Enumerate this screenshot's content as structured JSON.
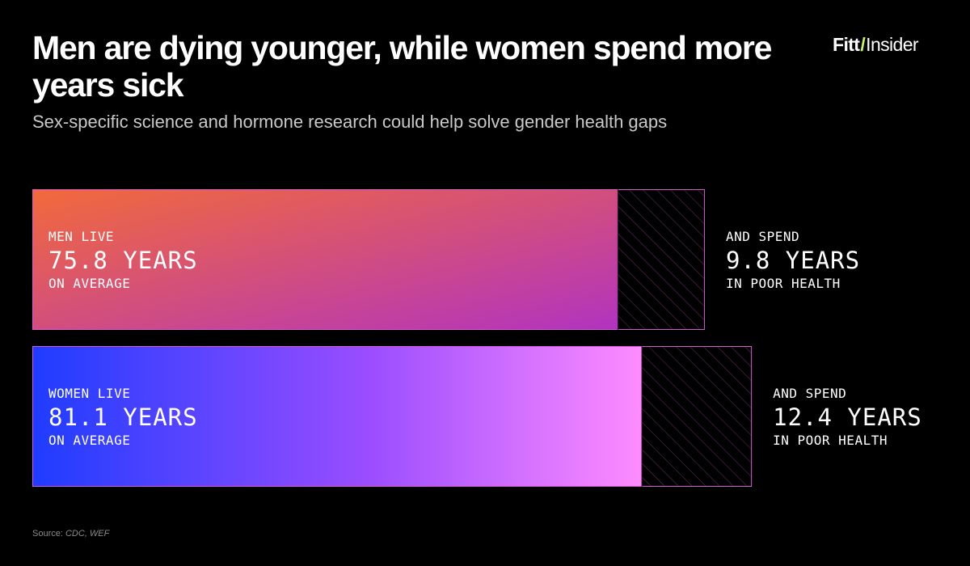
{
  "header": {
    "title": "Men are dying younger, while women spend more years sick",
    "subtitle": "Sex-specific science and hormone research could help solve gender health gaps"
  },
  "logo": {
    "brand": "Fitt",
    "slash": "/",
    "word": "Insider"
  },
  "chart_data": {
    "type": "bar",
    "orientation": "horizontal",
    "stacked": true,
    "categories": [
      "Men",
      "Women"
    ],
    "series": [
      {
        "values": [
          66.0,
          68.7
        ]
      },
      {
        "values": [
          9.8,
          12.4
        ]
      }
    ],
    "totals": [
      75.8,
      81.1
    ],
    "xlim": [
      0,
      82
    ],
    "grid": false,
    "bars": [
      {
        "label_top": "MEN LIVE",
        "label_value": "75.8 YEARS",
        "label_bottom": "ON AVERAGE",
        "side_top": "AND SPEND",
        "side_value": "9.8 YEARS",
        "side_bottom": "IN POOR HEALTH",
        "gradient": [
          "#f26a3a",
          "#b233c0"
        ]
      },
      {
        "label_top": "WOMEN LIVE",
        "label_value": "81.1 YEARS",
        "label_bottom": "ON AVERAGE",
        "side_top": "AND SPEND",
        "side_value": "12.4 YEARS",
        "side_bottom": "IN POOR HEALTH",
        "gradient": [
          "#1f3cff",
          "#ff8cff"
        ]
      }
    ],
    "outline_color": "#d35bd0"
  },
  "source": {
    "prefix": "Source:",
    "values": "CDC, WEF"
  }
}
